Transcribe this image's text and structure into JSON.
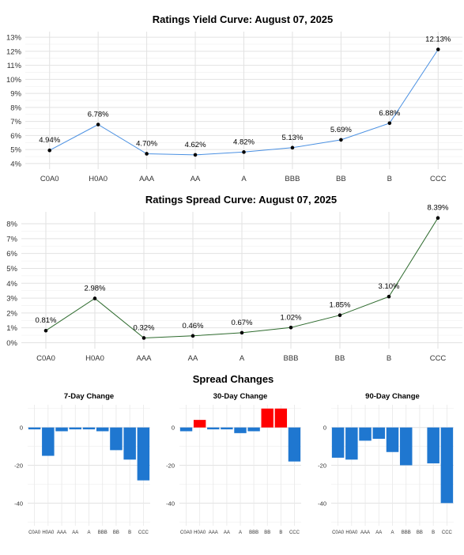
{
  "yield_chart": {
    "title": "Ratings Yield Curve: August 07, 2025",
    "line_color": "#4a90e2"
  },
  "spread_chart": {
    "title": "Ratings Spread Curve: August 07, 2025",
    "line_color": "#2e6b2e"
  },
  "changes_section": {
    "title": "Spread Changes",
    "positive_color": "#ff0000",
    "negative_color": "#1f77d0"
  },
  "chart_data": [
    {
      "id": "yield",
      "type": "line",
      "title": "Ratings Yield Curve: August 07, 2025",
      "categories": [
        "C0A0",
        "H0A0",
        "AAA",
        "AA",
        "A",
        "BBB",
        "BB",
        "B",
        "CCC"
      ],
      "values": [
        4.94,
        6.78,
        4.7,
        4.62,
        4.82,
        5.13,
        5.69,
        6.88,
        12.13
      ],
      "data_labels": [
        "4.94%",
        "6.78%",
        "4.70%",
        "4.62%",
        "4.82%",
        "5.13%",
        "5.69%",
        "6.88%",
        "12.13%"
      ],
      "yticks": [
        4,
        5,
        6,
        7,
        8,
        9,
        10,
        11,
        12,
        13
      ],
      "ytick_labels": [
        "4%",
        "5%",
        "6%",
        "7%",
        "8%",
        "9%",
        "10%",
        "11%",
        "12%",
        "13%"
      ],
      "ylim": [
        3.6,
        13.4
      ],
      "grid": true
    },
    {
      "id": "spread",
      "type": "line",
      "title": "Ratings Spread Curve: August 07, 2025",
      "categories": [
        "C0A0",
        "H0A0",
        "AAA",
        "AA",
        "A",
        "BBB",
        "BB",
        "B",
        "CCC"
      ],
      "values": [
        0.81,
        2.98,
        0.32,
        0.46,
        0.67,
        1.02,
        1.85,
        3.1,
        8.39
      ],
      "data_labels": [
        "0.81%",
        "2.98%",
        "0.32%",
        "0.46%",
        "0.67%",
        "1.02%",
        "1.85%",
        "3.10%",
        "8.39%"
      ],
      "yticks": [
        0,
        1,
        2,
        3,
        4,
        5,
        6,
        7,
        8
      ],
      "ytick_labels": [
        "0%",
        "1%",
        "2%",
        "3%",
        "4%",
        "5%",
        "6%",
        "7%",
        "8%"
      ],
      "ylim": [
        -0.4,
        8.8
      ],
      "grid": true
    },
    {
      "id": "chg7",
      "type": "bar",
      "title": "7-Day Change",
      "categories": [
        "C0A0",
        "H0A0",
        "AAA",
        "AA",
        "A",
        "BBB",
        "BB",
        "B",
        "CCC"
      ],
      "values": [
        -1,
        -15,
        -2,
        -1,
        -1,
        -2,
        -12,
        -17,
        -28
      ],
      "yticks": [
        0,
        -20,
        -40
      ],
      "ytick_labels": [
        "0",
        "-20",
        "-40"
      ],
      "ylim": [
        -52,
        12
      ],
      "grid": true
    },
    {
      "id": "chg30",
      "type": "bar",
      "title": "30-Day Change",
      "categories": [
        "C0A0",
        "H0A0",
        "AAA",
        "AA",
        "A",
        "BBB",
        "BB",
        "B",
        "CCC"
      ],
      "values": [
        -2,
        4,
        -1,
        -1,
        -3,
        -2,
        10,
        10,
        -18
      ],
      "yticks": [
        0,
        -20,
        -40
      ],
      "ytick_labels": [
        "0",
        "-20",
        "-40"
      ],
      "ylim": [
        -52,
        12
      ],
      "grid": true
    },
    {
      "id": "chg90",
      "type": "bar",
      "title": "90-Day Change",
      "categories": [
        "C0A0",
        "H0A0",
        "AAA",
        "AA",
        "A",
        "BBB",
        "BB",
        "B",
        "CCC"
      ],
      "values": [
        -16,
        -17,
        -7,
        -6,
        -13,
        -20,
        0,
        -19,
        -40
      ],
      "yticks": [
        0,
        -20,
        -40
      ],
      "ytick_labels": [
        "0",
        "-20",
        "-40"
      ],
      "ylim": [
        -52,
        12
      ],
      "grid": true
    }
  ]
}
